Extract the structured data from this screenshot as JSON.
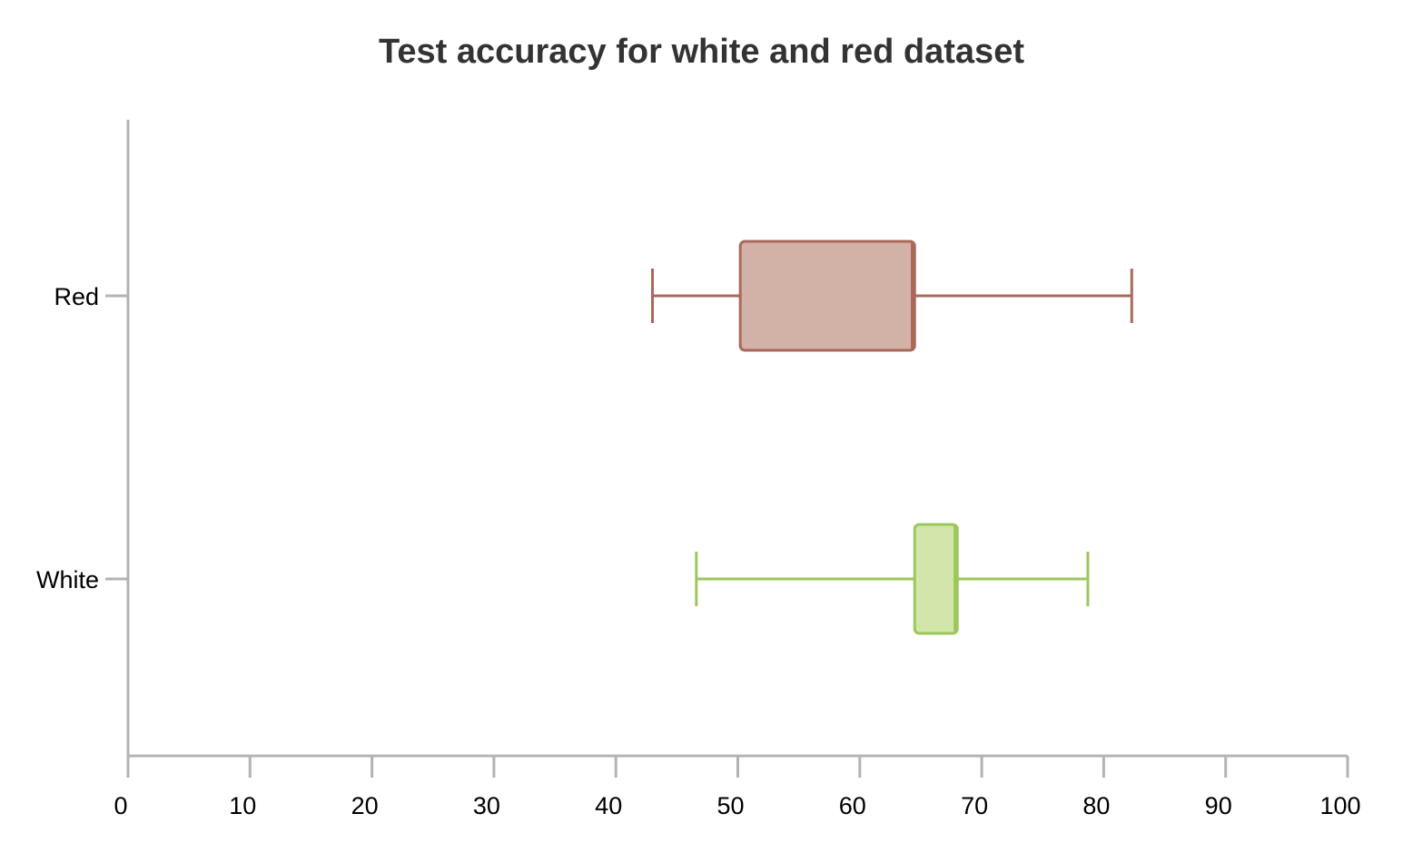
{
  "chart_data": {
    "type": "boxplot",
    "orientation": "horizontal",
    "title": "Test accuracy for white and red dataset",
    "xlabel": "",
    "ylabel": "",
    "xlim": [
      0,
      100
    ],
    "x_ticks": [
      0,
      10,
      20,
      30,
      40,
      50,
      60,
      70,
      80,
      90,
      100
    ],
    "categories": [
      "Red",
      "White"
    ],
    "series": [
      {
        "name": "Red",
        "min": 43.0,
        "q1": 50.2,
        "median": 64.3,
        "q3": 64.5,
        "max": 82.3,
        "color": "#a8695a",
        "fill": "#d2b1a6"
      },
      {
        "name": "White",
        "min": 46.6,
        "q1": 64.5,
        "median": 67.8,
        "q3": 68.0,
        "max": 78.7,
        "color": "#9cc75c",
        "fill": "#d2e6ab"
      }
    ],
    "grid": false,
    "axis_color": "#b3b3b3"
  }
}
